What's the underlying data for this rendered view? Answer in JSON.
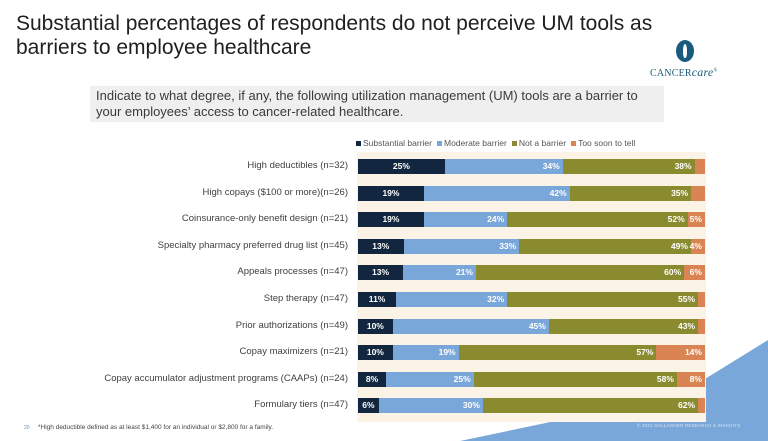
{
  "slide": {
    "title": "Substantial percentages of respondents do not perceive UM tools as barriers to employee healthcare",
    "logo": {
      "name": "CANCERcare",
      "part1": "CANCER",
      "part2": "care",
      "mark": "®"
    },
    "question": "Indicate to what degree, if any, the following utilization management (UM) tools are a barrier to your employees’ access to cancer-related healthcare.",
    "footnote": "*High deductible defined as at least $1,400 for an individual or $2,800 for a family.",
    "page_number": "20",
    "copyright": "© 2021 GALLAGHER RESEARCH & INSIGHTS"
  },
  "colors": {
    "substantial": "#12263f",
    "moderate": "#7aa7d9",
    "not": "#8a8b2f",
    "tst": "#d98452",
    "chart_bg": "#fbf3e6",
    "accent_shape": "#7aa7d9"
  },
  "chart_data": {
    "type": "bar",
    "orientation": "horizontal",
    "stacked": true,
    "unit": "%",
    "title": "Indicate to what degree, if any, the following utilization management (UM) tools are a barrier to your employees’ access to cancer-related healthcare.",
    "xlabel": "",
    "ylabel": "",
    "xlim": [
      0,
      100
    ],
    "grid": false,
    "legend_position": "top-right",
    "categories": [
      "High deductibles (n=32)",
      "High copays ($100 or more)(n=26)",
      "Coinsurance-only benefit design (n=21)",
      "Specialty pharmacy preferred drug list (n=45)",
      "Appeals processes (n=47)",
      "Step therapy (n=47)",
      "Prior authorizations (n=49)",
      "Copay maximizers (n=21)",
      "Copay accumulator adjustment programs (CAAPs) (n=24)",
      "Formulary tiers (n=47)"
    ],
    "series": [
      {
        "key": "substantial",
        "name": "Substantial barrier",
        "values": [
          25,
          19,
          19,
          13,
          13,
          11,
          10,
          10,
          8,
          6
        ],
        "labeled": [
          true,
          true,
          true,
          true,
          true,
          true,
          true,
          true,
          true,
          true
        ]
      },
      {
        "key": "moderate",
        "name": "Moderate barrier",
        "values": [
          34,
          42,
          24,
          33,
          21,
          32,
          45,
          19,
          25,
          30
        ],
        "labeled": [
          true,
          true,
          true,
          true,
          true,
          true,
          true,
          true,
          true,
          true
        ]
      },
      {
        "key": "not",
        "name": "Not a barrier",
        "values": [
          38,
          35,
          52,
          49,
          60,
          55,
          43,
          57,
          58,
          62
        ],
        "labeled": [
          true,
          true,
          true,
          true,
          true,
          true,
          true,
          true,
          true,
          true
        ]
      },
      {
        "key": "tst",
        "name": "Too soon to tell",
        "values": [
          3,
          4,
          5,
          4,
          6,
          2,
          2,
          14,
          8,
          2
        ],
        "labeled": [
          false,
          false,
          true,
          true,
          true,
          false,
          false,
          true,
          true,
          false
        ]
      }
    ]
  }
}
